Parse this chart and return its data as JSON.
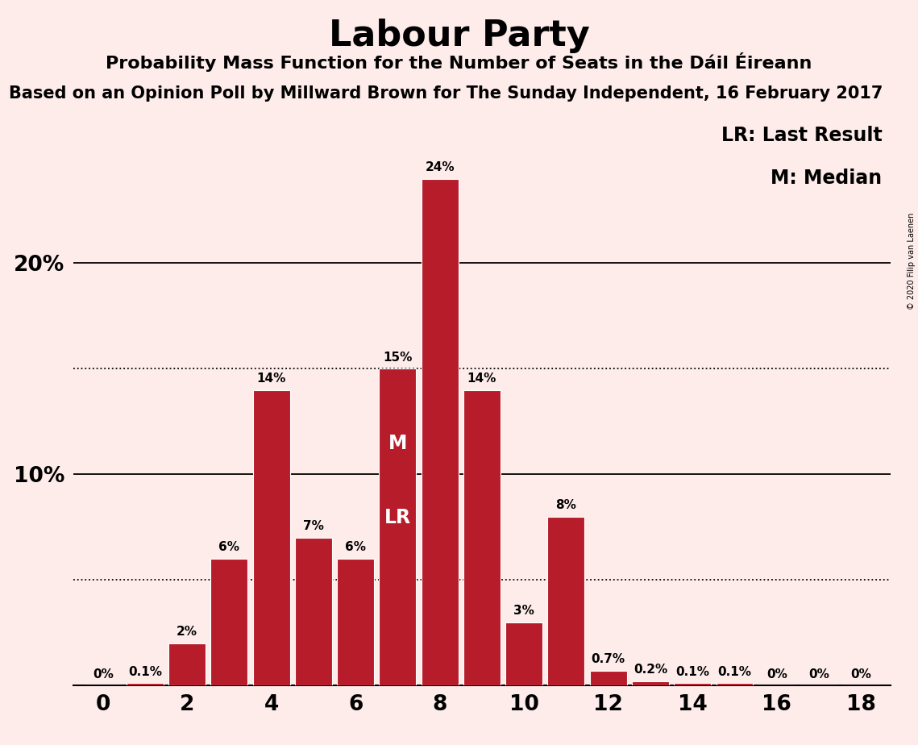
{
  "title": "Labour Party",
  "subtitle": "Probability Mass Function for the Number of Seats in the Dáil Éireann",
  "source_line": "Based on an Opinion Poll by Millward Brown for The Sunday Independent, 16 February 2017",
  "copyright": "© 2020 Filip van Laenen",
  "seats": [
    0,
    1,
    2,
    3,
    4,
    5,
    6,
    7,
    8,
    9,
    10,
    11,
    12,
    13,
    14,
    15,
    16,
    17,
    18
  ],
  "probabilities": [
    0.0,
    0.1,
    2.0,
    6.0,
    14.0,
    7.0,
    6.0,
    15.0,
    24.0,
    14.0,
    3.0,
    8.0,
    0.7,
    0.2,
    0.1,
    0.1,
    0.0,
    0.0,
    0.0
  ],
  "bar_color": "#b71c2b",
  "background_color": "#fdecea",
  "median_seat": 7,
  "last_result_seat": 7,
  "legend_lr": "LR: Last Result",
  "legend_m": "M: Median",
  "solid_lines": [
    10.0,
    20.0
  ],
  "dotted_lines": [
    5.0,
    15.0
  ],
  "ylim": [
    0,
    27
  ],
  "xlim": [
    -0.7,
    18.7
  ],
  "label_fontsize": 11,
  "ml_fontsize": 17,
  "title_fontsize": 32,
  "subtitle_fontsize": 16,
  "source_fontsize": 15,
  "tick_fontsize": 19,
  "legend_fontsize": 17
}
